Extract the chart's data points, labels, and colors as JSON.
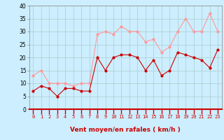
{
  "xlabel": "Vent moyen/en rafales ( km/h )",
  "x": [
    0,
    1,
    2,
    3,
    4,
    5,
    6,
    7,
    8,
    9,
    10,
    11,
    12,
    13,
    14,
    15,
    16,
    17,
    18,
    19,
    20,
    21,
    22,
    23
  ],
  "wind_avg": [
    7,
    9,
    8,
    5,
    8,
    8,
    7,
    7,
    20,
    15,
    20,
    21,
    21,
    20,
    15,
    19,
    13,
    15,
    22,
    21,
    20,
    19,
    16,
    23
  ],
  "wind_gust": [
    13,
    15,
    10,
    10,
    10,
    9,
    10,
    10,
    29,
    30,
    29,
    32,
    30,
    30,
    26,
    27,
    22,
    24,
    30,
    35,
    30,
    30,
    37,
    30
  ],
  "ylim": [
    0,
    40
  ],
  "yticks": [
    0,
    5,
    10,
    15,
    20,
    25,
    30,
    35,
    40
  ],
  "color_avg": "#cc0000",
  "color_gust": "#ff9999",
  "bg_color": "#cceeff",
  "grid_color": "#aacccc",
  "xlabel_color": "#cc0000",
  "marker_size": 2,
  "linewidth": 0.8
}
